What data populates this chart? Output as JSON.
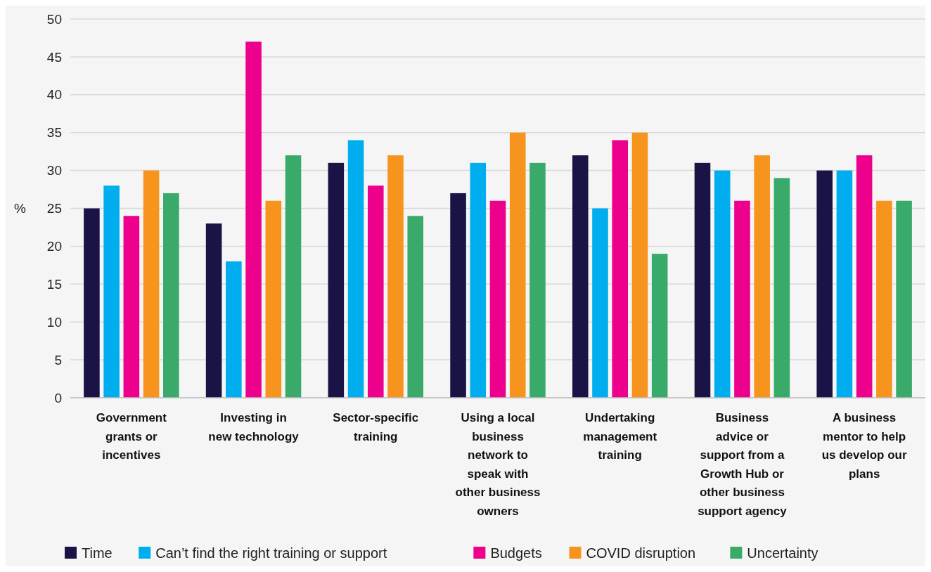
{
  "chart_data": {
    "type": "bar",
    "ylabel": "%",
    "categories": [
      "Government grants or incentives",
      "Investing in new technology",
      "Sector-specific training",
      "Using a local business network to speak with other business owners",
      "Undertaking management training",
      "Business advice or support from a Growth Hub or other business support agency",
      "A business mentor to help us develop our plans"
    ],
    "series": [
      {
        "name": "Time",
        "color": "#1a1446",
        "values": [
          25,
          23,
          31,
          27,
          32,
          31,
          30
        ]
      },
      {
        "name": "Can’t find the right training or support",
        "color": "#00aeef",
        "values": [
          28,
          18,
          34,
          31,
          25,
          30,
          30
        ]
      },
      {
        "name": "Budgets",
        "color": "#ec008c",
        "values": [
          24,
          47,
          28,
          26,
          34,
          26,
          32
        ]
      },
      {
        "name": "COVID disruption",
        "color": "#f7941d",
        "values": [
          30,
          26,
          32,
          35,
          35,
          32,
          26
        ]
      },
      {
        "name": "Uncertainty",
        "color": "#3aaa6a",
        "values": [
          27,
          32,
          24,
          31,
          19,
          29,
          26
        ]
      }
    ],
    "ylim": [
      0,
      50
    ],
    "yticks": [
      0,
      5,
      10,
      15,
      20,
      25,
      30,
      35,
      40,
      45,
      50
    ],
    "grid": "y",
    "legend": "bottom"
  }
}
